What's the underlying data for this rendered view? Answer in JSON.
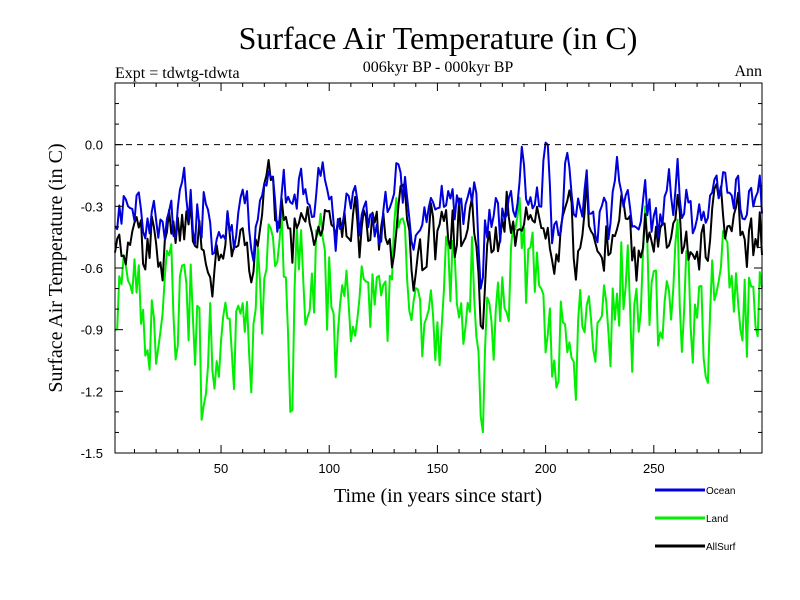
{
  "chart_data": {
    "type": "line",
    "title": "Surface Air Temperature (in C)",
    "subtitle": "006kyr BP - 000kyr BP",
    "annotation_left": "Expt = tdwtg-tdwta",
    "annotation_right": "Ann",
    "xlabel": "Time (in years since start)",
    "ylabel": "Surface Air Temperature (in C)",
    "xlim": [
      1,
      300
    ],
    "ylim": [
      -1.5,
      0.3
    ],
    "xticks": [
      50,
      100,
      150,
      200,
      250
    ],
    "xtick_labels": [
      "50",
      "100",
      "150",
      "200",
      "250"
    ],
    "yticks": [
      0.0,
      -0.3,
      -0.6,
      -0.9,
      -1.2,
      -1.5
    ],
    "ytick_labels": [
      "0.0",
      "-0.3",
      "-0.6",
      "-0.9",
      "-1.2",
      "-1.5"
    ],
    "reference_line": {
      "y": 0.0,
      "style": "dashed"
    },
    "legend_position": "bottom-right",
    "series": [
      {
        "name": "Ocean",
        "color": "#0000dd",
        "baseline": -0.3,
        "noise": 0.09,
        "seed": 11
      },
      {
        "name": "Land",
        "color": "#00ee00",
        "baseline": -0.72,
        "noise": 0.2,
        "seed": 23
      },
      {
        "name": "AllSurf",
        "color": "#000000",
        "baseline": -0.42,
        "noise": 0.11,
        "seed": 37
      }
    ],
    "key_points": [
      {
        "series": "Ocean",
        "x": 200,
        "y": 0.01
      },
      {
        "series": "Ocean",
        "x": 189,
        "y": -0.01
      },
      {
        "series": "Ocean",
        "x": 210,
        "y": -0.04
      },
      {
        "series": "Land",
        "x": 170,
        "y": -1.32
      },
      {
        "series": "Land",
        "x": 82,
        "y": -1.3
      },
      {
        "series": "Land",
        "x": 42,
        "y": -1.27
      },
      {
        "series": "AllSurf",
        "x": 170,
        "y": -0.88
      },
      {
        "series": "Ocean",
        "x": 170,
        "y": -0.7
      }
    ]
  }
}
